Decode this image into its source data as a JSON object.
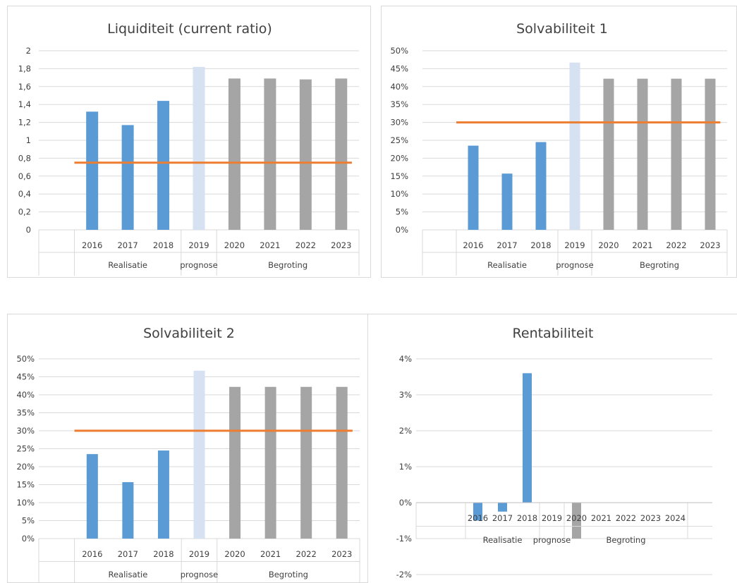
{
  "colors": {
    "realisatie": "#5b9bd5",
    "prognose": "#d6e1f1",
    "begroting": "#a5a5a5",
    "norm": "#ed7d31",
    "grid": "#d9d9d9",
    "text": "#404040"
  },
  "chart_data": [
    {
      "type": "bar",
      "title": "Liquiditeit (current ratio)",
      "categories": [
        "2016",
        "2017",
        "2018",
        "2019",
        "2020",
        "2021",
        "2022",
        "2023"
      ],
      "groups": [
        {
          "label": "Realisatie",
          "span": [
            0,
            2
          ]
        },
        {
          "label": "prognose",
          "span": [
            3,
            3
          ]
        },
        {
          "label": "Begroting",
          "span": [
            4,
            7
          ]
        }
      ],
      "values": [
        1.32,
        1.17,
        1.44,
        1.82,
        1.69,
        1.69,
        1.68,
        1.69
      ],
      "bar_kinds": [
        "realisatie",
        "realisatie",
        "realisatie",
        "prognose",
        "begroting",
        "begroting",
        "begroting",
        "begroting"
      ],
      "norm_value": 0.75,
      "ylim": [
        0,
        2
      ],
      "yticks": [
        0,
        0.2,
        0.4,
        0.6,
        0.8,
        1,
        1.2,
        1.4,
        1.6,
        1.8,
        2
      ],
      "ytick_labels": [
        "0",
        "0,2",
        "0,4",
        "0,6",
        "0,8",
        "1",
        "1,2",
        "1,4",
        "1,6",
        "1,8",
        "2"
      ],
      "grid": true
    },
    {
      "type": "bar",
      "title": "Solvabiliteit 1",
      "categories": [
        "2016",
        "2017",
        "2018",
        "2019",
        "2020",
        "2021",
        "2022",
        "2023"
      ],
      "groups": [
        {
          "label": "Realisatie",
          "span": [
            0,
            2
          ]
        },
        {
          "label": "prognose",
          "span": [
            3,
            3
          ]
        },
        {
          "label": "Begroting",
          "span": [
            4,
            7
          ]
        }
      ],
      "values": [
        0.235,
        0.157,
        0.245,
        0.467,
        0.422,
        0.422,
        0.422,
        0.422
      ],
      "bar_kinds": [
        "realisatie",
        "realisatie",
        "realisatie",
        "prognose",
        "begroting",
        "begroting",
        "begroting",
        "begroting"
      ],
      "norm_value": 0.3,
      "ylim": [
        0,
        0.5
      ],
      "yticks": [
        0,
        0.05,
        0.1,
        0.15,
        0.2,
        0.25,
        0.3,
        0.35,
        0.4,
        0.45,
        0.5
      ],
      "ytick_labels": [
        "0%",
        "5%",
        "10%",
        "15%",
        "20%",
        "25%",
        "30%",
        "35%",
        "40%",
        "45%",
        "50%"
      ],
      "grid": true
    },
    {
      "type": "bar",
      "title": "Solvabiliteit 2",
      "categories": [
        "2016",
        "2017",
        "2018",
        "2019",
        "2020",
        "2021",
        "2022",
        "2023"
      ],
      "groups": [
        {
          "label": "Realisatie",
          "span": [
            0,
            2
          ]
        },
        {
          "label": "prognose",
          "span": [
            3,
            3
          ]
        },
        {
          "label": "Begroting",
          "span": [
            4,
            7
          ]
        }
      ],
      "values": [
        0.235,
        0.157,
        0.245,
        0.467,
        0.422,
        0.422,
        0.422,
        0.422
      ],
      "bar_kinds": [
        "realisatie",
        "realisatie",
        "realisatie",
        "prognose",
        "begroting",
        "begroting",
        "begroting",
        "begroting"
      ],
      "norm_value": 0.3,
      "ylim": [
        0,
        0.5
      ],
      "yticks": [
        0,
        0.05,
        0.1,
        0.15,
        0.2,
        0.25,
        0.3,
        0.35,
        0.4,
        0.45,
        0.5
      ],
      "ytick_labels": [
        "0%",
        "5%",
        "10%",
        "15%",
        "20%",
        "25%",
        "30%",
        "35%",
        "40%",
        "45%",
        "50%"
      ],
      "grid": true
    },
    {
      "type": "bar",
      "title": "Rentabiliteit",
      "categories": [
        "2016",
        "2017",
        "2018",
        "2019",
        "2020",
        "2021",
        "2022",
        "2023",
        "2024"
      ],
      "groups": [
        {
          "label": "Realisatie",
          "span": [
            0,
            2
          ]
        },
        {
          "label": "prognose",
          "span": [
            3,
            3
          ]
        },
        {
          "label": "Begroting",
          "span": [
            4,
            8
          ]
        }
      ],
      "values": [
        -0.005,
        -0.0025,
        0.036,
        0,
        -0.01,
        0,
        0,
        0,
        0
      ],
      "bar_kinds": [
        "realisatie",
        "realisatie",
        "realisatie",
        "prognose",
        "begroting",
        "begroting",
        "begroting",
        "begroting",
        "begroting"
      ],
      "ylim": [
        -0.02,
        0.04
      ],
      "yticks": [
        -0.02,
        -0.01,
        0,
        0.01,
        0.02,
        0.03,
        0.04
      ],
      "ytick_labels": [
        "-2%",
        "-1%",
        "0%",
        "1%",
        "2%",
        "3%",
        "4%"
      ],
      "grid": true
    }
  ]
}
